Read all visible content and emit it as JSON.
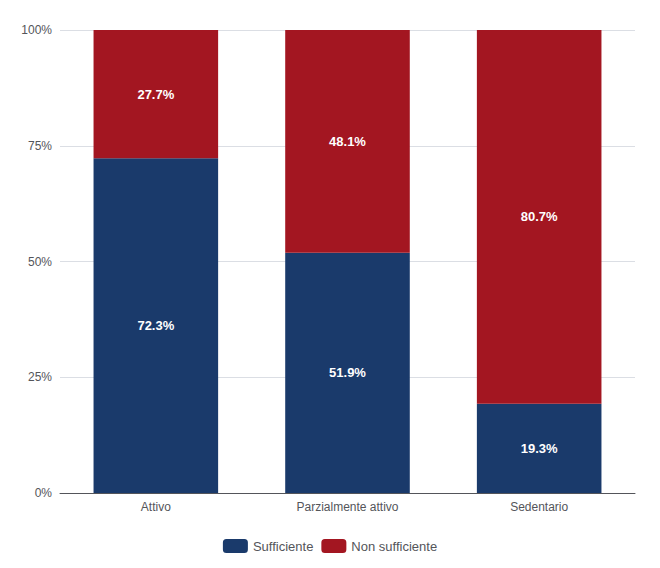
{
  "chart_data": {
    "type": "bar",
    "stacked": true,
    "categories": [
      "Attivo",
      "Parzialmente attivo",
      "Sedentario"
    ],
    "series": [
      {
        "name": "Sufficiente",
        "color": "#1a3a6b",
        "values": [
          72.3,
          51.9,
          19.3
        ],
        "value_labels": [
          "72.3%",
          "51.9%",
          "19.3%"
        ]
      },
      {
        "name": "Non sufficiente",
        "color": "#a31621",
        "values": [
          27.7,
          48.1,
          80.7
        ],
        "value_labels": [
          "27.7%",
          "48.1%",
          "80.7%"
        ]
      }
    ],
    "ylim": [
      0,
      100
    ],
    "yticks": [
      {
        "value": 0,
        "label": "0%"
      },
      {
        "value": 25,
        "label": "25%"
      },
      {
        "value": 50,
        "label": "50%"
      },
      {
        "value": 75,
        "label": "75%"
      },
      {
        "value": 100,
        "label": "100%"
      }
    ],
    "grid": true,
    "data_labels": true,
    "legend": "bottom"
  }
}
